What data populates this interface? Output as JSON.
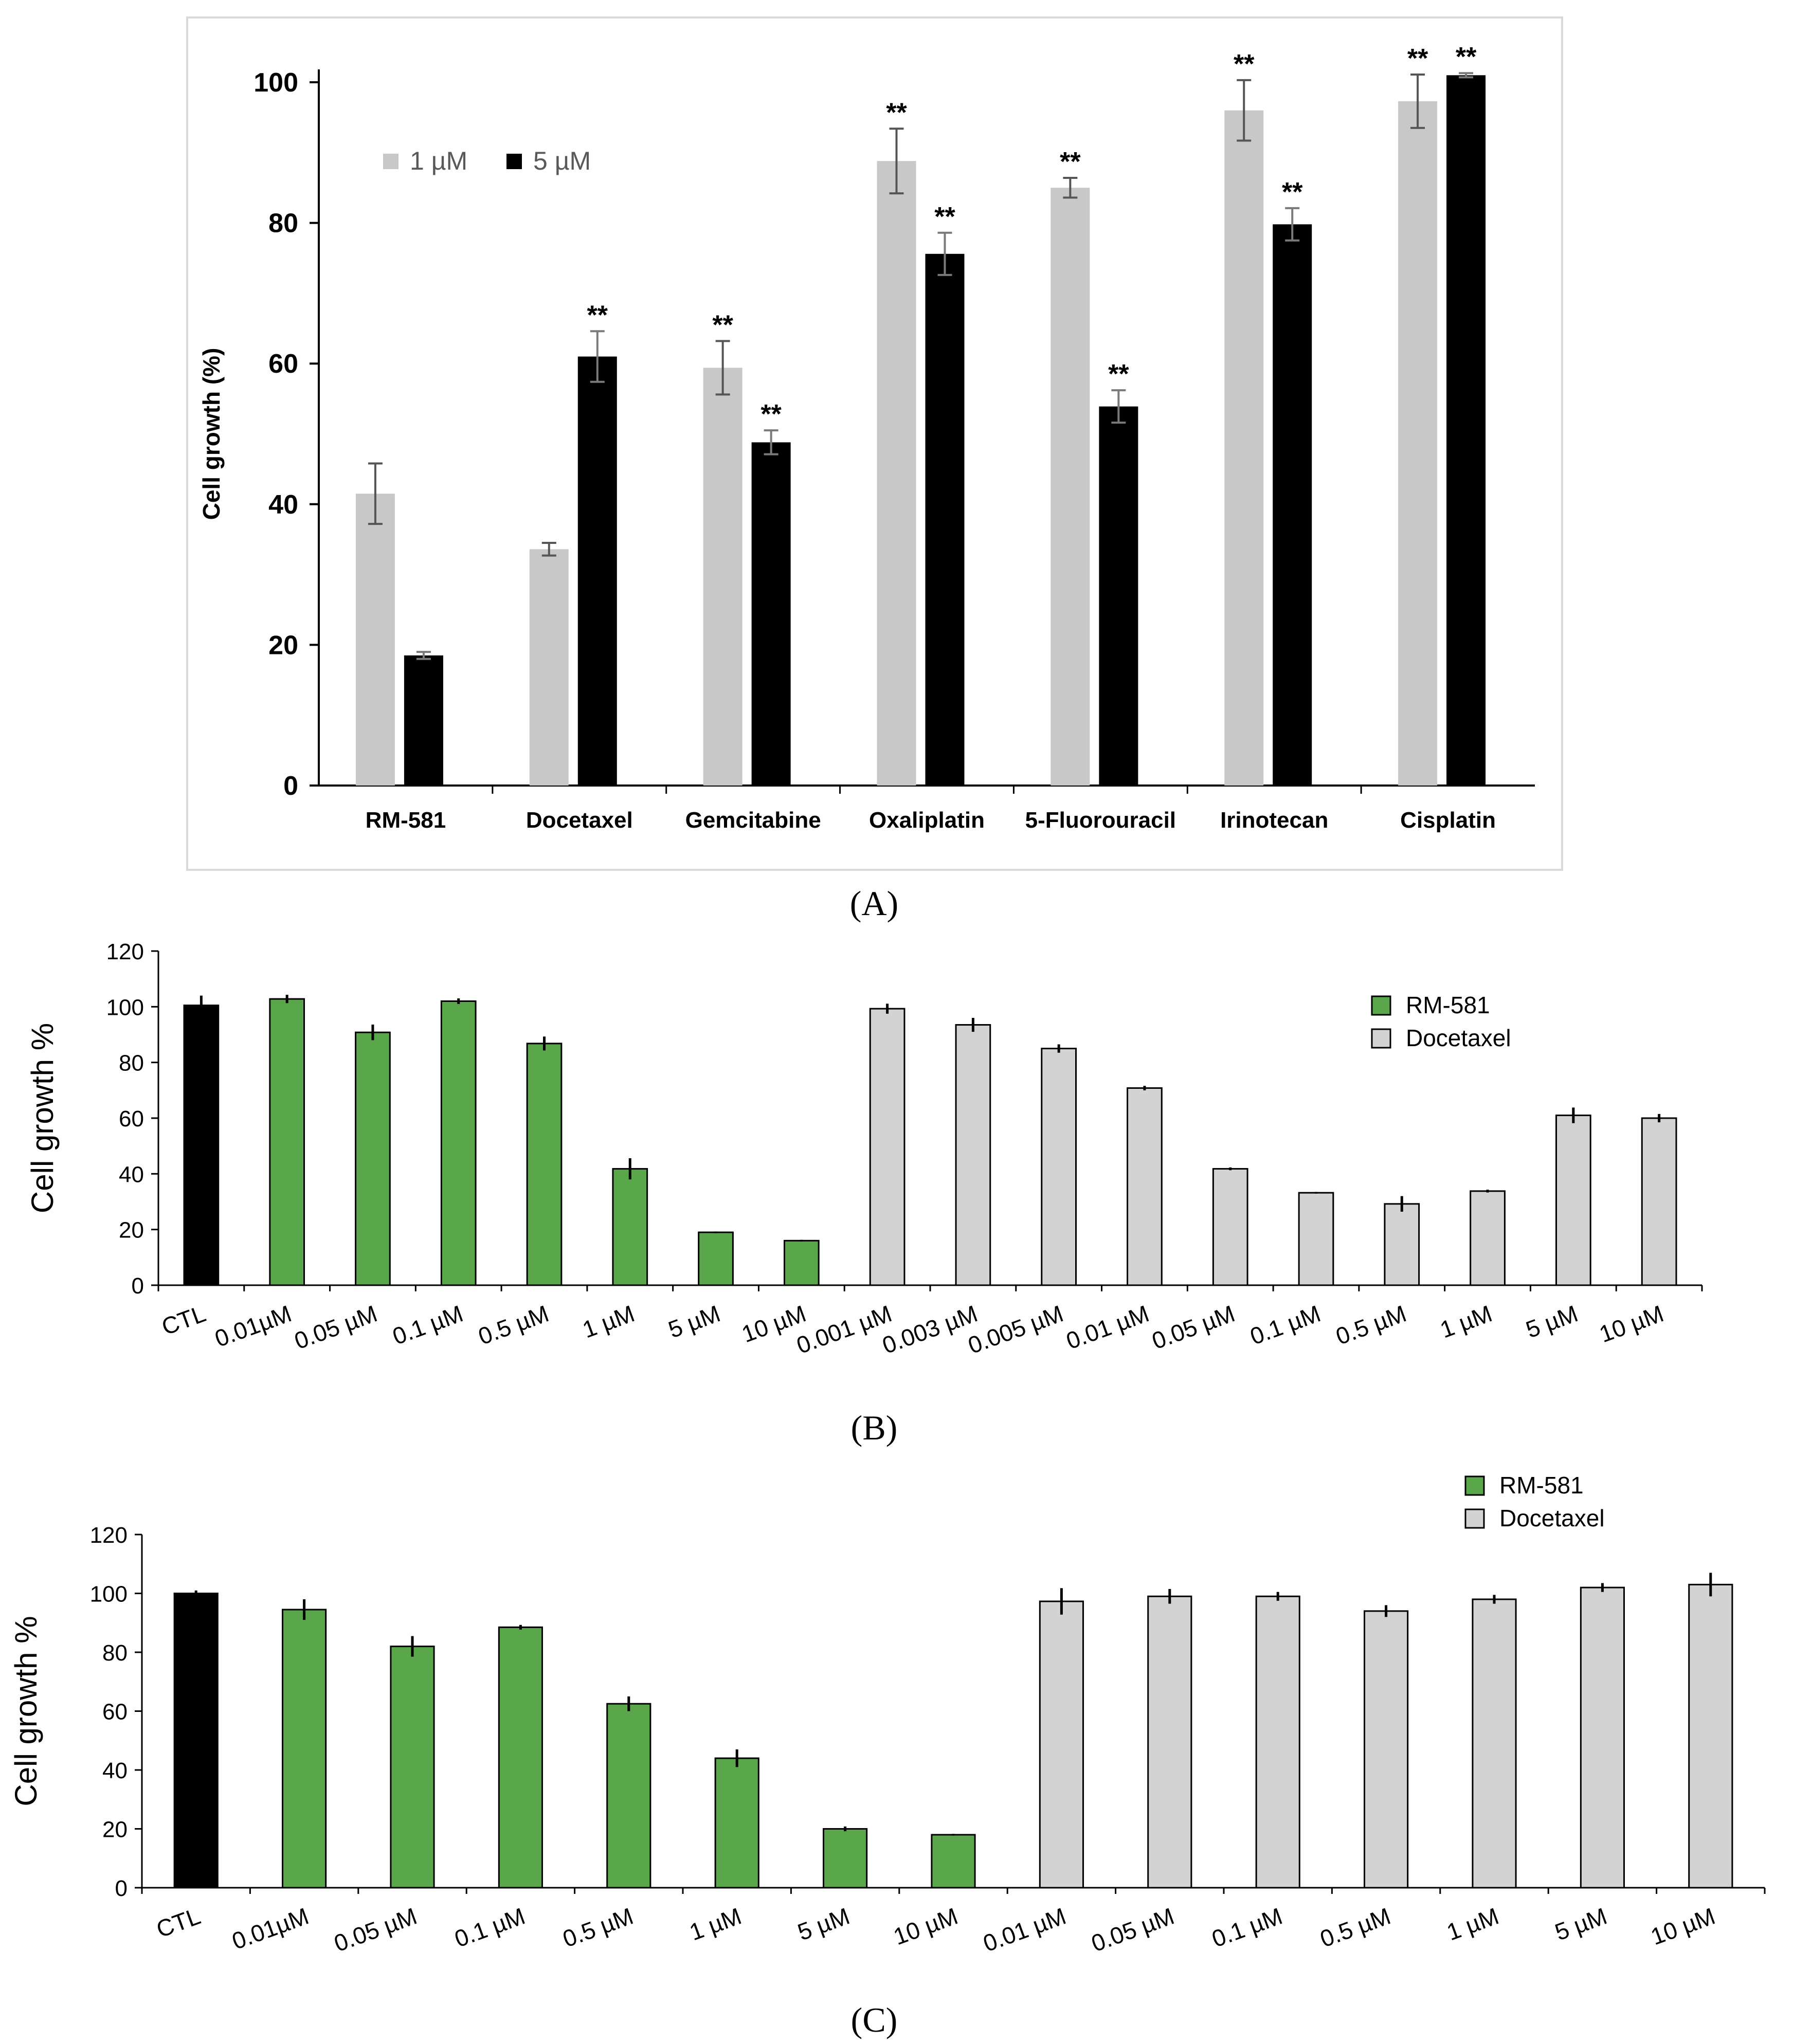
{
  "colors": {
    "light_gray": "#c8c8c8",
    "black": "#000000",
    "green": "#5aa64a",
    "panel_gray": "#d3d3d3",
    "axis": "#000000",
    "frame": "#d9d9d9",
    "legend_text": "#595959"
  },
  "chart_data": [
    {
      "id": "A",
      "panel_label": "A",
      "type": "bar",
      "ylabel": "Cell growth (%)",
      "xlabel": "",
      "ylim": [
        0,
        100
      ],
      "yticks": [
        "0",
        "20",
        "40",
        "60",
        "80",
        "100"
      ],
      "legend_position": "top-left",
      "categories": [
        "RM-581",
        "Docetaxel",
        "Gemcitabine",
        "Oxaliplatin",
        "5-Fluorouracil",
        "Irinotecan",
        "Cisplatin"
      ],
      "series": [
        {
          "name": "1 µM",
          "color": "#c8c8c8",
          "values": [
            41.5,
            33.6,
            59.4,
            88.8,
            85.0,
            96.0,
            97.3
          ],
          "errors": [
            4.3,
            0.9,
            3.8,
            4.6,
            1.4,
            4.3,
            3.8
          ],
          "sig": [
            "",
            "",
            "**",
            "**",
            "**",
            "**",
            "**"
          ]
        },
        {
          "name": "5 µM",
          "color": "#000000",
          "values": [
            18.5,
            61.0,
            48.8,
            75.6,
            53.9,
            79.8,
            101.0
          ],
          "errors": [
            0.5,
            3.6,
            1.7,
            3.0,
            2.3,
            2.3,
            0.3
          ],
          "sig": [
            "",
            "**",
            "**",
            "**",
            "**",
            "**",
            "**"
          ]
        }
      ]
    },
    {
      "id": "B",
      "panel_label": "B",
      "type": "bar",
      "ylabel": "Cell growth %",
      "xlabel": "",
      "ylim": [
        0,
        120
      ],
      "yticks": [
        "0",
        "20",
        "40",
        "60",
        "80",
        "100",
        "120"
      ],
      "legend_position": "top-right",
      "legend": [
        {
          "name": "RM-581",
          "color": "#5aa64a"
        },
        {
          "name": "Docetaxel",
          "color": "#d3d3d3"
        }
      ],
      "categories": [
        "CTL",
        "0.01µM",
        "0.05 µM",
        "0.1 µM",
        "0.5 µM",
        "1 µM",
        "5 µM",
        "10 µM",
        "0.001 µM",
        "0.003 µM",
        "0.005 µM",
        "0.01 µM",
        "0.05 µM",
        "0.1 µM",
        "0.5 µM",
        "1  µM",
        "5  µM",
        "10  µM"
      ],
      "values": [
        100.5,
        102.8,
        90.8,
        102.0,
        86.8,
        41.8,
        19.0,
        16.0,
        99.3,
        93.5,
        85.0,
        70.8,
        41.8,
        33.2,
        29.2,
        33.8,
        61.0,
        60.0
      ],
      "errors": [
        3.5,
        1.5,
        2.8,
        1.0,
        2.5,
        3.8,
        0.3,
        0.3,
        1.8,
        2.5,
        1.5,
        0.8,
        0.5,
        0.3,
        2.8,
        0.5,
        2.8,
        1.5
      ],
      "groups": [
        "ctl",
        "rm",
        "rm",
        "rm",
        "rm",
        "rm",
        "rm",
        "rm",
        "doc",
        "doc",
        "doc",
        "doc",
        "doc",
        "doc",
        "doc",
        "doc",
        "doc",
        "doc"
      ]
    },
    {
      "id": "C",
      "panel_label": "C",
      "type": "bar",
      "ylabel": "Cell growth %",
      "xlabel": "",
      "ylim": [
        0,
        120
      ],
      "yticks": [
        "0",
        "20",
        "40",
        "60",
        "80",
        "100",
        "120"
      ],
      "legend_position": "top-right",
      "legend": [
        {
          "name": "RM-581",
          "color": "#5aa64a"
        },
        {
          "name": "Docetaxel",
          "color": "#d3d3d3"
        }
      ],
      "categories": [
        "CTL",
        "0.01µM",
        "0.05 µM",
        "0.1 µM",
        "0.5 µM",
        "1 µM",
        "5 µM",
        "10 µM",
        "0.01 µM",
        "0.05 µM",
        "0.1 µM",
        "0.5 µM",
        "1 µM",
        "5 µM",
        "10 µM"
      ],
      "values": [
        100.0,
        94.5,
        82.0,
        88.5,
        62.5,
        44.0,
        20.0,
        18.0,
        97.3,
        99.0,
        99.0,
        94.0,
        98.0,
        102.0,
        103.0
      ],
      "errors": [
        1.0,
        3.5,
        3.5,
        0.8,
        2.5,
        3.0,
        0.8,
        0.3,
        4.5,
        2.5,
        1.5,
        2.0,
        1.5,
        1.5,
        4.0
      ],
      "groups": [
        "ctl",
        "rm",
        "rm",
        "rm",
        "rm",
        "rm",
        "rm",
        "rm",
        "doc",
        "doc",
        "doc",
        "doc",
        "doc",
        "doc",
        "doc"
      ]
    }
  ]
}
